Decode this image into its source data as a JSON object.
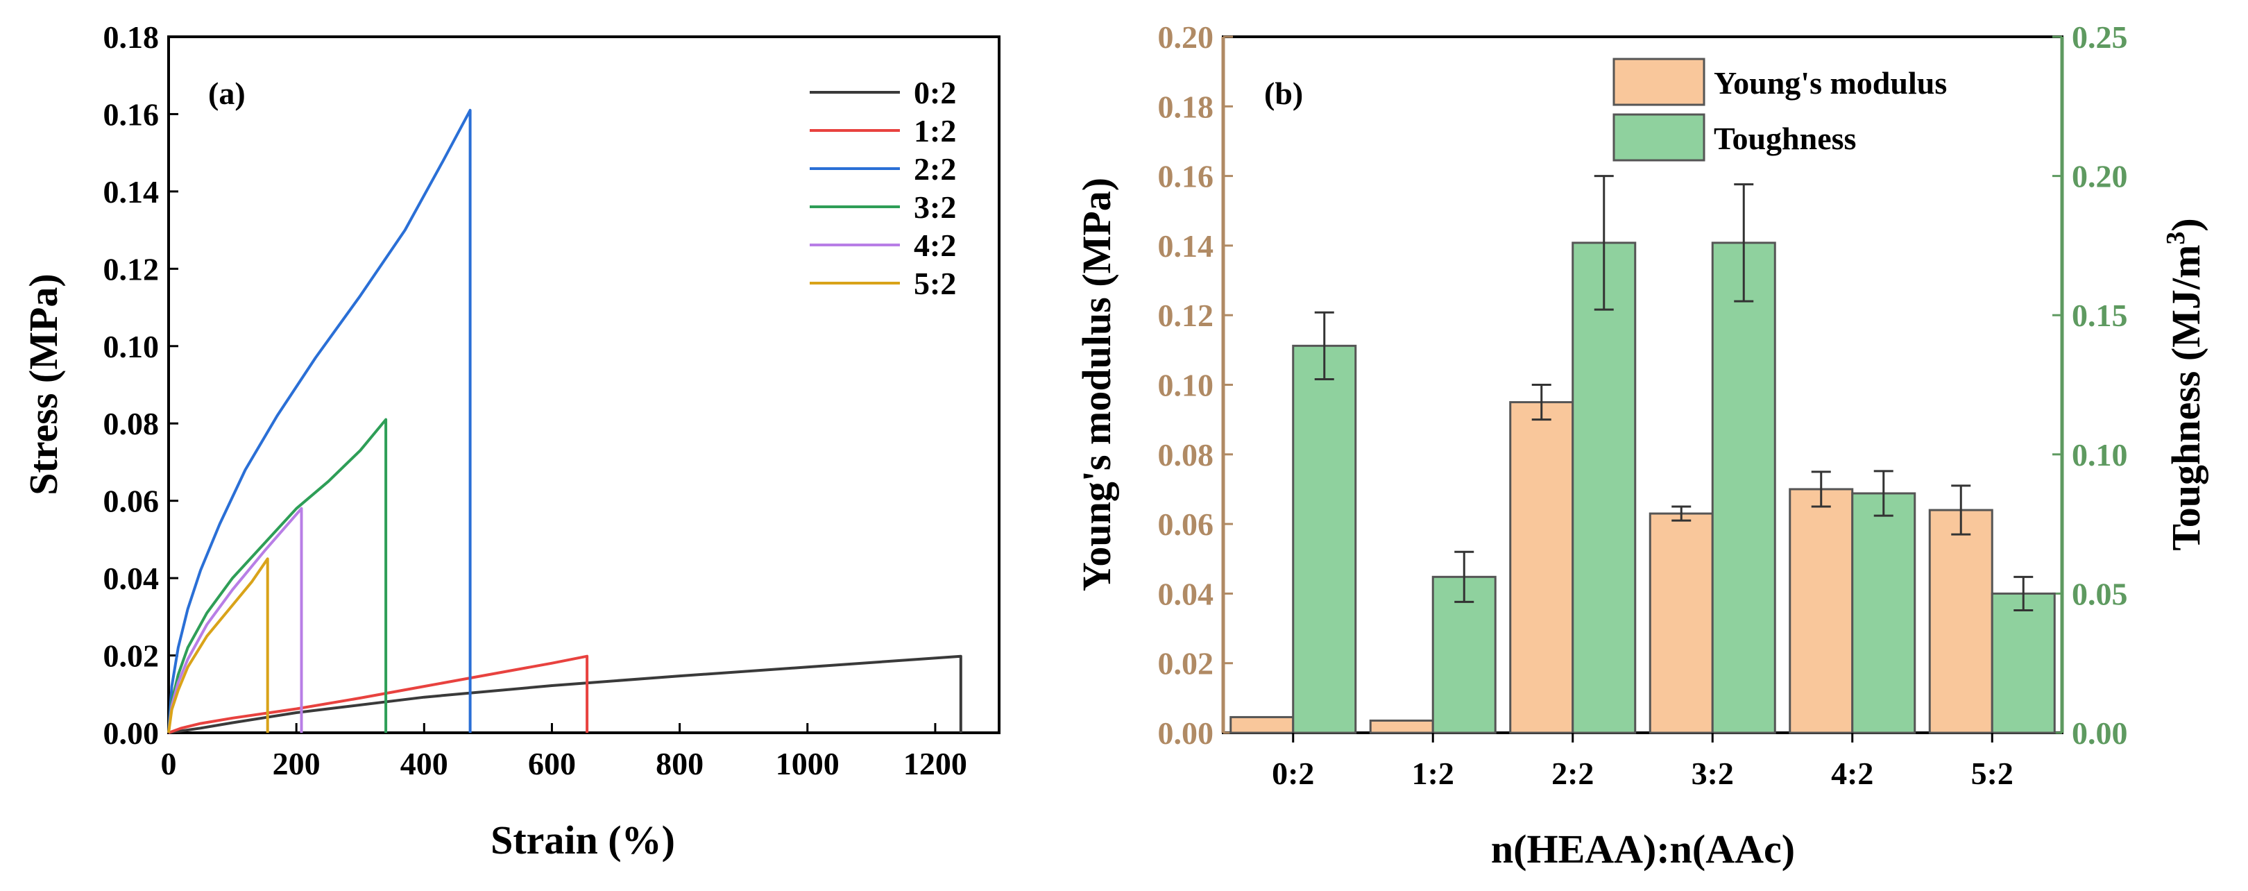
{
  "chart_data": [
    {
      "type": "line",
      "panel_label": "(a)",
      "xlabel": "Strain (%)",
      "ylabel": "Stress (MPa)",
      "xlim": [
        0,
        1300
      ],
      "ylim": [
        0,
        0.18
      ],
      "x_ticks": [
        "0",
        "200",
        "400",
        "600",
        "800",
        "1000",
        "1200"
      ],
      "y_ticks": [
        "0.00",
        "0.02",
        "0.04",
        "0.06",
        "0.08",
        "0.10",
        "0.12",
        "0.14",
        "0.16",
        "0.18"
      ],
      "legend_position": "top-right",
      "series": [
        {
          "name": "0:2",
          "color": "#3a3a3a",
          "points": [
            [
              0,
              0
            ],
            [
              50,
              0.0012
            ],
            [
              100,
              0.0026
            ],
            [
              200,
              0.0052
            ],
            [
              400,
              0.0092
            ],
            [
              600,
              0.0122
            ],
            [
              800,
              0.0147
            ],
            [
              1000,
              0.017
            ],
            [
              1240,
              0.0198
            ]
          ]
        },
        {
          "name": "1:2",
          "color": "#e8423f",
          "points": [
            [
              0,
              0
            ],
            [
              20,
              0.0012
            ],
            [
              50,
              0.0024
            ],
            [
              100,
              0.0038
            ],
            [
              200,
              0.0062
            ],
            [
              300,
              0.009
            ],
            [
              400,
              0.012
            ],
            [
              500,
              0.015
            ],
            [
              600,
              0.018
            ],
            [
              655,
              0.0198
            ]
          ]
        },
        {
          "name": "2:2",
          "color": "#2a6fd6",
          "points": [
            [
              0,
              0
            ],
            [
              5,
              0.012
            ],
            [
              15,
              0.022
            ],
            [
              30,
              0.032
            ],
            [
              50,
              0.042
            ],
            [
              80,
              0.054
            ],
            [
              120,
              0.068
            ],
            [
              170,
              0.082
            ],
            [
              230,
              0.097
            ],
            [
              300,
              0.113
            ],
            [
              370,
              0.13
            ],
            [
              430,
              0.148
            ],
            [
              472,
              0.161
            ]
          ]
        },
        {
          "name": "3:2",
          "color": "#2e9e57",
          "points": [
            [
              0,
              0
            ],
            [
              5,
              0.008
            ],
            [
              15,
              0.015
            ],
            [
              30,
              0.022
            ],
            [
              60,
              0.031
            ],
            [
              100,
              0.04
            ],
            [
              150,
              0.049
            ],
            [
              200,
              0.058
            ],
            [
              250,
              0.065
            ],
            [
              300,
              0.073
            ],
            [
              340,
              0.081
            ]
          ]
        },
        {
          "name": "4:2",
          "color": "#b87ee6",
          "points": [
            [
              0,
              0
            ],
            [
              5,
              0.007
            ],
            [
              15,
              0.013
            ],
            [
              30,
              0.019
            ],
            [
              60,
              0.028
            ],
            [
              100,
              0.037
            ],
            [
              150,
              0.047
            ],
            [
              208,
              0.058
            ]
          ]
        },
        {
          "name": "5:2",
          "color": "#d9a319",
          "points": [
            [
              0,
              0
            ],
            [
              5,
              0.006
            ],
            [
              15,
              0.011
            ],
            [
              30,
              0.017
            ],
            [
              60,
              0.025
            ],
            [
              100,
              0.033
            ],
            [
              130,
              0.039
            ],
            [
              155,
              0.045
            ]
          ]
        }
      ]
    },
    {
      "type": "bar",
      "panel_label": "(b)",
      "categories": [
        "0:2",
        "1:2",
        "2:2",
        "3:2",
        "4:2",
        "5:2"
      ],
      "xlabel": "n(HEAA):n(AAc)",
      "ylabel_left": "Young's modulus (MPa)",
      "ylabel_right_base": "Toughness (MJ/m",
      "ylabel_right_sup": "3",
      "ylabel_right_end": ")",
      "ylim_left": [
        0,
        0.2
      ],
      "ylim_right": [
        0,
        0.25
      ],
      "y_ticks_left": [
        "0.00",
        "0.02",
        "0.04",
        "0.06",
        "0.08",
        "0.10",
        "0.12",
        "0.14",
        "0.16",
        "0.18",
        "0.20"
      ],
      "y_ticks_right": [
        "0.00",
        "0.05",
        "0.10",
        "0.15",
        "0.20",
        "0.25"
      ],
      "legend_position": "top-right",
      "series": [
        {
          "name": "Young's modulus",
          "axis": "left",
          "color": "#f9c79b",
          "values": [
            0.0045,
            0.0035,
            0.095,
            0.063,
            0.07,
            0.064
          ],
          "errors": [
            0.0,
            0.0,
            0.005,
            0.002,
            0.005,
            0.007
          ]
        },
        {
          "name": "Toughness",
          "axis": "right",
          "color": "#8fd19e",
          "values": [
            0.139,
            0.056,
            0.176,
            0.176,
            0.086,
            0.05
          ],
          "errors": [
            0.012,
            0.009,
            0.024,
            0.021,
            0.008,
            0.006
          ]
        }
      ],
      "left_axis_color": "#b08a64",
      "right_axis_color": "#5e9a60"
    }
  ]
}
